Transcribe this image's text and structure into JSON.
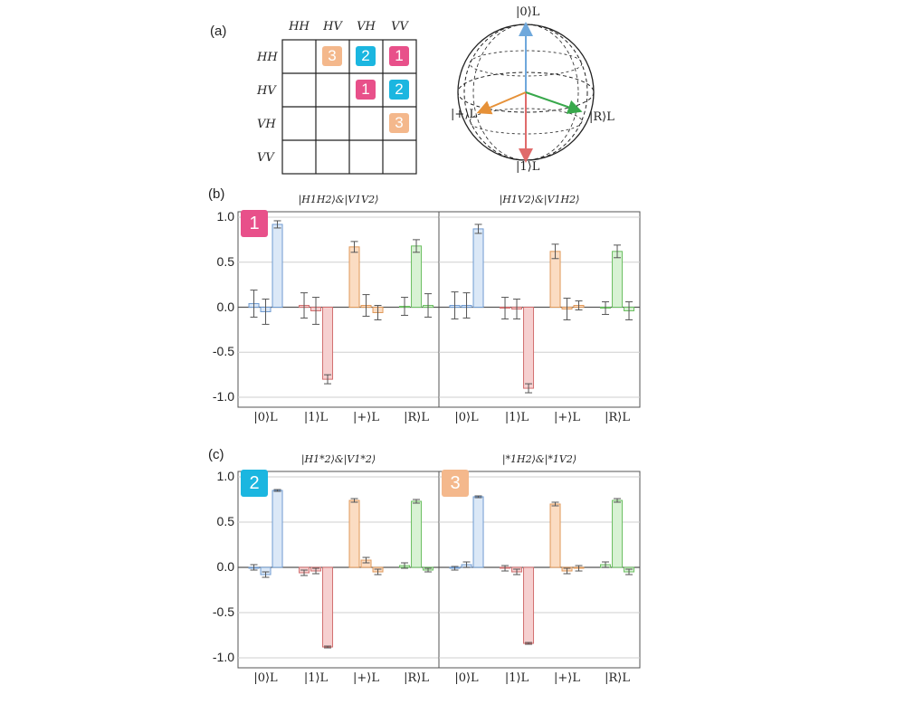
{
  "panel_a": {
    "label": "(a)",
    "col_headers": [
      "HH",
      "HV",
      "VH",
      "VV"
    ],
    "row_headers": [
      "HH",
      "HV",
      "VH",
      "VV"
    ],
    "cells": [
      {
        "row": 0,
        "col": 1,
        "text": "3",
        "color": "#f4b88c"
      },
      {
        "row": 0,
        "col": 2,
        "text": "2",
        "color": "#1bb6e0"
      },
      {
        "row": 0,
        "col": 3,
        "text": "1",
        "color": "#e8508a"
      },
      {
        "row": 1,
        "col": 2,
        "text": "1",
        "color": "#e8508a"
      },
      {
        "row": 1,
        "col": 3,
        "text": "2",
        "color": "#1bb6e0"
      },
      {
        "row": 2,
        "col": 3,
        "text": "3",
        "color": "#f4b88c"
      }
    ],
    "bloch": {
      "top": "|0⟩L",
      "bottom": "|1⟩L",
      "left": "|+⟩L",
      "right": "|R⟩L",
      "arrow_colors": {
        "zero": "#6fa8dc",
        "one": "#e06b6b",
        "plus": "#e69138",
        "r": "#38a84b"
      }
    }
  },
  "panel_b_label": "(b)",
  "panel_c_label": "(c)",
  "colors": {
    "blue_fill": "#dbe8f7",
    "blue_edge": "#6f9bd1",
    "red_fill": "#f6d0d0",
    "red_edge": "#d27070",
    "orange_fill": "#fbdcc2",
    "orange_edge": "#e0995a",
    "green_fill": "#d8f2d4",
    "green_edge": "#6cbf62",
    "badge1": "#e8508a",
    "badge2": "#1bb6e0",
    "badge3": "#f4b88c"
  },
  "chart_data": [
    {
      "type": "bar",
      "title": "|H1H2⟩&|V1V2⟩",
      "badge": "1",
      "yticks": [
        "1.0",
        "0.5",
        "0.0",
        "-0.5",
        "-1.0"
      ],
      "ylim": [
        -1.05,
        1.0
      ],
      "grid": true,
      "groups": [
        "|0⟩L",
        "|1⟩L",
        "|+⟩L",
        "|R⟩L"
      ],
      "values": [
        [
          0.04,
          -0.05,
          0.92
        ],
        [
          0.02,
          -0.04,
          -0.8
        ],
        [
          0.67,
          0.02,
          -0.06
        ],
        [
          0.01,
          0.68,
          0.02
        ]
      ],
      "errors": [
        [
          0.15,
          0.14,
          0.04
        ],
        [
          0.14,
          0.15,
          0.05
        ],
        [
          0.06,
          0.12,
          0.08
        ],
        [
          0.1,
          0.07,
          0.13
        ]
      ]
    },
    {
      "type": "bar",
      "title": "|H1V2⟩&|V1H2⟩",
      "badge": "",
      "ylim": [
        -1.05,
        1.0
      ],
      "grid": true,
      "groups": [
        "|0⟩L",
        "|1⟩L",
        "|+⟩L",
        "|R⟩L"
      ],
      "values": [
        [
          0.02,
          0.02,
          0.87
        ],
        [
          -0.01,
          -0.02,
          -0.9
        ],
        [
          0.62,
          -0.02,
          0.02
        ],
        [
          -0.01,
          0.62,
          -0.04
        ]
      ],
      "errors": [
        [
          0.15,
          0.14,
          0.05
        ],
        [
          0.12,
          0.11,
          0.05
        ],
        [
          0.08,
          0.12,
          0.05
        ],
        [
          0.07,
          0.07,
          0.1
        ]
      ]
    },
    {
      "type": "bar",
      "title": "|H1*2⟩&|V1*2⟩",
      "badge": "2",
      "yticks": [
        "1.0",
        "0.5",
        "0.0",
        "-0.5",
        "-1.0"
      ],
      "ylim": [
        -1.05,
        1.0
      ],
      "grid": true,
      "groups": [
        "|0⟩L",
        "|1⟩L",
        "|+⟩L",
        "|R⟩L"
      ],
      "values": [
        [
          0.0,
          -0.08,
          0.85
        ],
        [
          -0.06,
          -0.04,
          -0.88
        ],
        [
          0.74,
          0.08,
          -0.05
        ],
        [
          0.02,
          0.73,
          -0.03
        ]
      ],
      "errors": [
        [
          0.03,
          0.03,
          0.01
        ],
        [
          0.03,
          0.03,
          0.01
        ],
        [
          0.02,
          0.03,
          0.03
        ],
        [
          0.03,
          0.02,
          0.02
        ]
      ]
    },
    {
      "type": "bar",
      "title": "|*1H2⟩&|*1V2⟩",
      "badge": "3",
      "ylim": [
        -1.05,
        1.0
      ],
      "grid": true,
      "groups": [
        "|0⟩L",
        "|1⟩L",
        "|+⟩L",
        "|R⟩L"
      ],
      "values": [
        [
          -0.01,
          0.03,
          0.78
        ],
        [
          -0.01,
          -0.05,
          -0.84
        ],
        [
          0.7,
          -0.04,
          -0.01
        ],
        [
          0.03,
          0.74,
          -0.05
        ]
      ],
      "errors": [
        [
          0.02,
          0.03,
          0.01
        ],
        [
          0.03,
          0.03,
          0.01
        ],
        [
          0.02,
          0.03,
          0.03
        ],
        [
          0.03,
          0.02,
          0.03
        ]
      ]
    }
  ]
}
